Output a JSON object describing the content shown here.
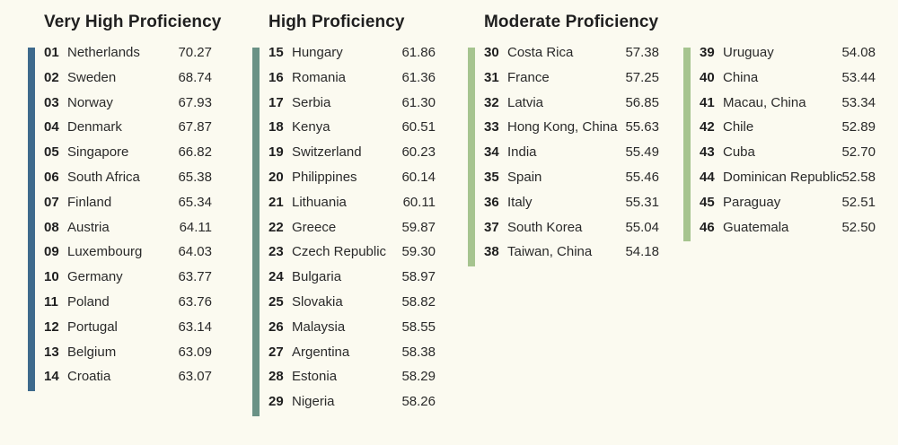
{
  "categories": [
    {
      "title": "Very High Proficiency",
      "bar_color": "#3e6a8c",
      "rows": [
        {
          "rank": "01",
          "country": "Netherlands",
          "score": "70.27"
        },
        {
          "rank": "02",
          "country": "Sweden",
          "score": "68.74"
        },
        {
          "rank": "03",
          "country": "Norway",
          "score": "67.93"
        },
        {
          "rank": "04",
          "country": "Denmark",
          "score": "67.87"
        },
        {
          "rank": "05",
          "country": "Singapore",
          "score": "66.82"
        },
        {
          "rank": "06",
          "country": "South Africa",
          "score": "65.38"
        },
        {
          "rank": "07",
          "country": "Finland",
          "score": "65.34"
        },
        {
          "rank": "08",
          "country": "Austria",
          "score": "64.11"
        },
        {
          "rank": "09",
          "country": "Luxembourg",
          "score": "64.03"
        },
        {
          "rank": "10",
          "country": "Germany",
          "score": "63.77"
        },
        {
          "rank": "11",
          "country": "Poland",
          "score": "63.76"
        },
        {
          "rank": "12",
          "country": "Portugal",
          "score": "63.14"
        },
        {
          "rank": "13",
          "country": "Belgium",
          "score": "63.09"
        },
        {
          "rank": "14",
          "country": "Croatia",
          "score": "63.07"
        }
      ]
    },
    {
      "title": "High Proficiency",
      "bar_color": "#6a9286",
      "rows": [
        {
          "rank": "15",
          "country": "Hungary",
          "score": "61.86"
        },
        {
          "rank": "16",
          "country": "Romania",
          "score": "61.36"
        },
        {
          "rank": "17",
          "country": "Serbia",
          "score": "61.30"
        },
        {
          "rank": "18",
          "country": "Kenya",
          "score": "60.51"
        },
        {
          "rank": "19",
          "country": "Switzerland",
          "score": "60.23"
        },
        {
          "rank": "20",
          "country": "Philippines",
          "score": "60.14"
        },
        {
          "rank": "21",
          "country": "Lithuania",
          "score": "60.11"
        },
        {
          "rank": "22",
          "country": "Greece",
          "score": "59.87"
        },
        {
          "rank": "23",
          "country": "Czech Republic",
          "score": "59.30"
        },
        {
          "rank": "24",
          "country": "Bulgaria",
          "score": "58.97"
        },
        {
          "rank": "25",
          "country": "Slovakia",
          "score": "58.82"
        },
        {
          "rank": "26",
          "country": "Malaysia",
          "score": "58.55"
        },
        {
          "rank": "27",
          "country": "Argentina",
          "score": "58.38"
        },
        {
          "rank": "28",
          "country": "Estonia",
          "score": "58.29"
        },
        {
          "rank": "29",
          "country": "Nigeria",
          "score": "58.26"
        }
      ]
    },
    {
      "title": "Moderate Proficiency",
      "bar_color": "#a6c48f",
      "rows": [
        {
          "rank": "30",
          "country": "Costa Rica",
          "score": "57.38"
        },
        {
          "rank": "31",
          "country": "France",
          "score": "57.25"
        },
        {
          "rank": "32",
          "country": "Latvia",
          "score": "56.85"
        },
        {
          "rank": "33",
          "country": "Hong Kong, China",
          "score": "55.63"
        },
        {
          "rank": "34",
          "country": "India",
          "score": "55.49"
        },
        {
          "rank": "35",
          "country": "Spain",
          "score": "55.46"
        },
        {
          "rank": "36",
          "country": "Italy",
          "score": "55.31"
        },
        {
          "rank": "37",
          "country": "South Korea",
          "score": "55.04"
        },
        {
          "rank": "38",
          "country": "Taiwan, China",
          "score": "54.18"
        },
        {
          "rank": "39",
          "country": "Uruguay",
          "score": "54.08"
        },
        {
          "rank": "40",
          "country": "China",
          "score": "53.44"
        },
        {
          "rank": "41",
          "country": "Macau, China",
          "score": "53.34"
        },
        {
          "rank": "42",
          "country": "Chile",
          "score": "52.89"
        },
        {
          "rank": "43",
          "country": "Cuba",
          "score": "52.70"
        },
        {
          "rank": "44",
          "country": "Dominican Republic",
          "score": "52.58"
        },
        {
          "rank": "45",
          "country": "Paraguay",
          "score": "52.51"
        },
        {
          "rank": "46",
          "country": "Guatemala",
          "score": "52.50"
        }
      ]
    }
  ]
}
